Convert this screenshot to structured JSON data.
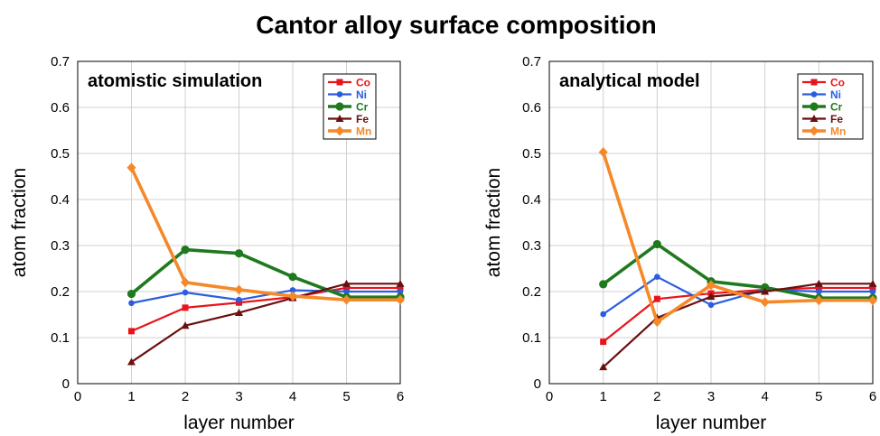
{
  "title": "Cantor alloy surface composition",
  "chart_data": [
    {
      "type": "line",
      "panel_label": "atomistic simulation",
      "xlabel": "layer number",
      "ylabel": "atom fraction",
      "xlim": [
        0,
        6
      ],
      "ylim": [
        0,
        0.7
      ],
      "xticks": [
        "0",
        "1",
        "2",
        "3",
        "4",
        "5",
        "6"
      ],
      "yticks": [
        "0",
        "0.1",
        "0.2",
        "0.3",
        "0.4",
        "0.5",
        "0.6",
        "0.7"
      ],
      "grid": true,
      "legend_position": "top-right",
      "x": [
        1,
        2,
        3,
        4,
        5,
        6
      ],
      "series": [
        {
          "name": "Co",
          "color": "#e8141b",
          "marker": "square",
          "values": [
            0.114,
            0.165,
            0.176,
            0.188,
            0.208,
            0.208
          ]
        },
        {
          "name": "Ni",
          "color": "#2a5de0",
          "marker": "circle",
          "values": [
            0.175,
            0.198,
            0.182,
            0.203,
            0.2,
            0.2
          ]
        },
        {
          "name": "Cr",
          "color": "#1f7a1f",
          "marker": "circle-large",
          "values": [
            0.195,
            0.291,
            0.283,
            0.232,
            0.188,
            0.188
          ]
        },
        {
          "name": "Fe",
          "color": "#6b0f0f",
          "marker": "triangle",
          "values": [
            0.047,
            0.126,
            0.154,
            0.186,
            0.217,
            0.217
          ]
        },
        {
          "name": "Mn",
          "color": "#f5892a",
          "marker": "diamond",
          "values": [
            0.469,
            0.22,
            0.204,
            0.19,
            0.182,
            0.182
          ]
        }
      ]
    },
    {
      "type": "line",
      "panel_label": "analytical model",
      "xlabel": "layer number",
      "ylabel": "atom fraction",
      "xlim": [
        0,
        6
      ],
      "ylim": [
        0,
        0.7
      ],
      "xticks": [
        "0",
        "1",
        "2",
        "3",
        "4",
        "5",
        "6"
      ],
      "yticks": [
        "0",
        "0.1",
        "0.2",
        "0.3",
        "0.4",
        "0.5",
        "0.6",
        "0.7"
      ],
      "grid": true,
      "legend_position": "top-right",
      "x": [
        1,
        2,
        3,
        4,
        5,
        6
      ],
      "series": [
        {
          "name": "Co",
          "color": "#e8141b",
          "marker": "square",
          "values": [
            0.091,
            0.184,
            0.196,
            0.204,
            0.208,
            0.208
          ]
        },
        {
          "name": "Ni",
          "color": "#2a5de0",
          "marker": "circle",
          "values": [
            0.151,
            0.232,
            0.171,
            0.204,
            0.2,
            0.2
          ]
        },
        {
          "name": "Cr",
          "color": "#1f7a1f",
          "marker": "circle-large",
          "values": [
            0.216,
            0.303,
            0.222,
            0.209,
            0.186,
            0.186
          ]
        },
        {
          "name": "Fe",
          "color": "#6b0f0f",
          "marker": "triangle",
          "values": [
            0.036,
            0.143,
            0.189,
            0.2,
            0.217,
            0.217
          ]
        },
        {
          "name": "Mn",
          "color": "#f5892a",
          "marker": "diamond",
          "values": [
            0.503,
            0.134,
            0.214,
            0.177,
            0.181,
            0.181
          ]
        }
      ]
    }
  ]
}
